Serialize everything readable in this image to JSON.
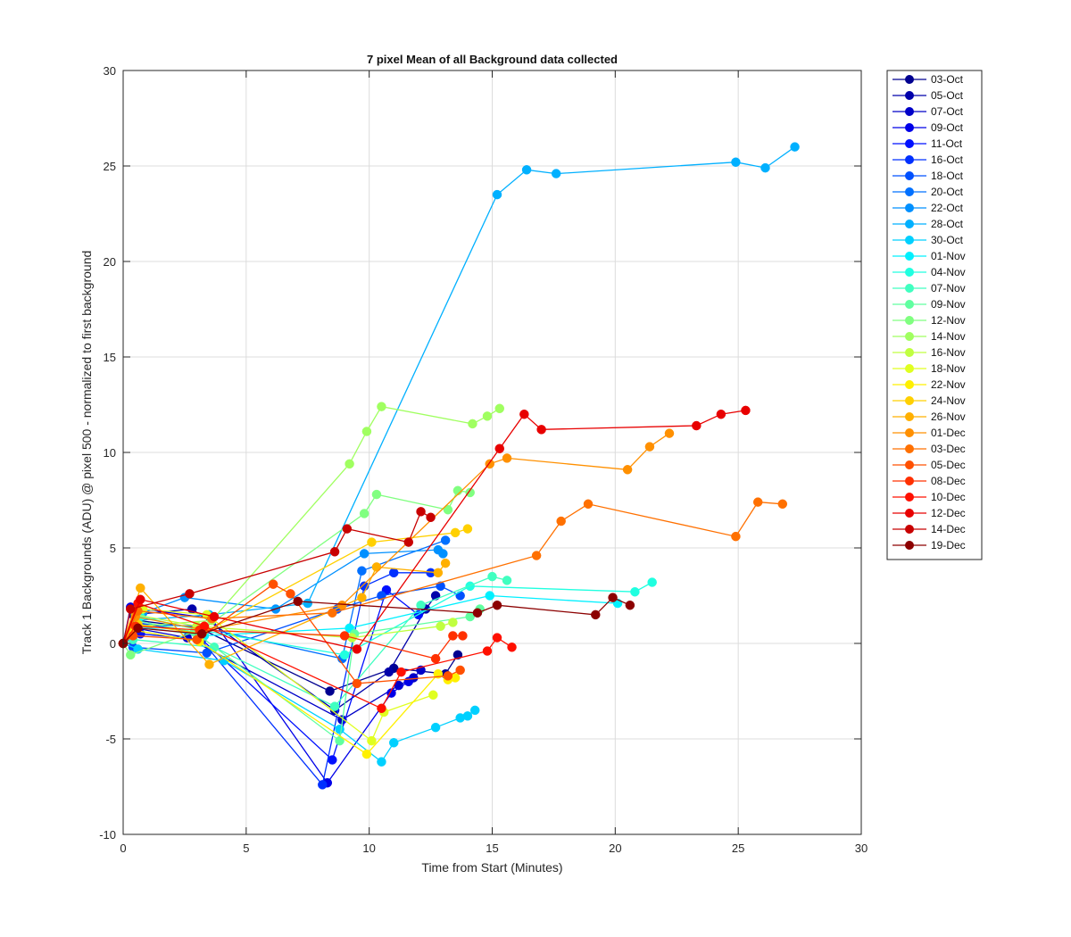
{
  "chart_data": {
    "type": "line",
    "title": "7 pixel Mean of all Background data collected",
    "xlabel": "Time from Start (Minutes)",
    "ylabel": "Track 1 Backgrounds (ADU) @ pixel 500 - normalized to first background",
    "xlim": [
      0,
      30
    ],
    "ylim": [
      -10,
      30
    ],
    "xticks": [
      0,
      5,
      10,
      15,
      20,
      25,
      30
    ],
    "yticks": [
      -10,
      -5,
      0,
      5,
      10,
      15,
      20,
      25,
      30
    ],
    "grid": true,
    "legend_position": "outside-top-right",
    "series": [
      {
        "name": "03-Oct",
        "color": "#000090",
        "x": [
          0,
          0.6,
          3.1,
          8.4,
          11.0,
          13.1,
          13.6
        ],
        "y": [
          0,
          1.2,
          0.8,
          -2.5,
          -1.3,
          -1.6,
          -0.6
        ]
      },
      {
        "name": "05-Oct",
        "color": "#0000AA",
        "x": [
          0,
          0.4,
          2.8,
          8.6,
          10.8,
          12.3,
          12.7
        ],
        "y": [
          0,
          1.5,
          1.8,
          -3.5,
          -1.5,
          1.8,
          2.5
        ]
      },
      {
        "name": "07-Oct",
        "color": "#0000C8",
        "x": [
          0,
          0.5,
          2.6,
          8.9,
          11.2,
          11.8,
          12.1
        ],
        "y": [
          0,
          0.8,
          0.3,
          -4.0,
          -2.2,
          -1.8,
          -1.4
        ]
      },
      {
        "name": "09-Oct",
        "color": "#0000E8",
        "x": [
          0,
          0.3,
          3.6,
          8.3,
          10.9,
          11.6
        ],
        "y": [
          0,
          1.9,
          1.3,
          -7.3,
          -2.6,
          -2.0
        ]
      },
      {
        "name": "11-Oct",
        "color": "#0010FF",
        "x": [
          0,
          0.7,
          3.2,
          8.5,
          10.7,
          12.0
        ],
        "y": [
          0,
          0.5,
          0.2,
          -6.1,
          2.8,
          1.5
        ]
      },
      {
        "name": "16-Oct",
        "color": "#0030FF",
        "x": [
          0,
          0.5,
          2.9,
          8.1,
          9.8,
          11.0,
          12.5
        ],
        "y": [
          0,
          1.1,
          0.6,
          -7.4,
          3.0,
          3.7,
          3.7
        ]
      },
      {
        "name": "18-Oct",
        "color": "#0050FF",
        "x": [
          0,
          0.4,
          3.4,
          8.7,
          10.5,
          12.9,
          13.7
        ],
        "y": [
          0,
          -0.2,
          -0.5,
          1.8,
          2.5,
          3.0,
          2.5
        ]
      },
      {
        "name": "20-Oct",
        "color": "#0070FF",
        "x": [
          0,
          0.6,
          3.0,
          8.9,
          9.7,
          13.1
        ],
        "y": [
          0,
          1.0,
          0.9,
          -0.8,
          3.8,
          5.4
        ]
      },
      {
        "name": "22-Oct",
        "color": "#0090FF",
        "x": [
          0,
          0.8,
          2.5,
          6.2,
          9.8,
          12.8,
          13.0
        ],
        "y": [
          0,
          1.6,
          2.4,
          1.8,
          4.7,
          4.9,
          4.7
        ]
      },
      {
        "name": "28-Oct",
        "color": "#00B0FF",
        "x": [
          0,
          0.5,
          3.5,
          7.5,
          15.2,
          16.4,
          17.6,
          24.9,
          26.1,
          27.3
        ],
        "y": [
          0,
          1.2,
          1.5,
          2.1,
          23.5,
          24.8,
          24.6,
          25.2,
          24.9,
          26.0
        ]
      },
      {
        "name": "30-Oct",
        "color": "#00D0FF",
        "x": [
          0,
          0.6,
          4.1,
          8.8,
          10.5,
          11.0,
          12.7,
          13.7,
          14.0,
          14.3
        ],
        "y": [
          0,
          -0.3,
          -0.9,
          -4.5,
          -6.2,
          -5.2,
          -4.4,
          -3.9,
          -3.8,
          -3.5
        ]
      },
      {
        "name": "01-Nov",
        "color": "#00F0FF",
        "x": [
          0,
          0.5,
          3.3,
          9.2,
          14.9,
          20.1
        ],
        "y": [
          0,
          0.9,
          0.4,
          0.8,
          2.5,
          2.1
        ]
      },
      {
        "name": "04-Nov",
        "color": "#20FFE0",
        "x": [
          0,
          0.7,
          3.1,
          9.0,
          14.1,
          20.8,
          21.5
        ],
        "y": [
          0,
          1.4,
          0.7,
          -0.6,
          3.0,
          2.7,
          3.2
        ]
      },
      {
        "name": "07-Nov",
        "color": "#40FFC0",
        "x": [
          0,
          0.4,
          3.7,
          8.6,
          12.1,
          15.0,
          15.6
        ],
        "y": [
          0,
          0.2,
          -0.2,
          -3.3,
          2.0,
          3.5,
          3.3
        ]
      },
      {
        "name": "09-Nov",
        "color": "#60FFA0",
        "x": [
          0,
          0.5,
          2.9,
          8.8,
          9.4,
          14.1,
          14.5
        ],
        "y": [
          0,
          1.2,
          0.6,
          -5.1,
          0.5,
          1.4,
          1.8
        ]
      },
      {
        "name": "12-Nov",
        "color": "#80FF80",
        "x": [
          0,
          0.3,
          3.3,
          9.8,
          10.3,
          13.2,
          13.6,
          14.1
        ],
        "y": [
          0,
          -0.6,
          0.8,
          6.8,
          7.8,
          7.0,
          8.0,
          7.9
        ]
      },
      {
        "name": "14-Nov",
        "color": "#A0FF60",
        "x": [
          0,
          0.6,
          3.6,
          9.2,
          9.9,
          10.5,
          14.2,
          14.8,
          15.3
        ],
        "y": [
          0,
          0.9,
          1.2,
          9.4,
          11.1,
          12.4,
          11.5,
          11.9,
          12.3
        ]
      },
      {
        "name": "16-Nov",
        "color": "#C0FF40",
        "x": [
          0,
          0.5,
          3.0,
          9.3,
          12.9,
          13.4
        ],
        "y": [
          0,
          1.5,
          0.9,
          0.3,
          0.9,
          1.1
        ]
      },
      {
        "name": "18-Nov",
        "color": "#E0FF20",
        "x": [
          0,
          0.8,
          3.4,
          10.1,
          10.6,
          12.6
        ],
        "y": [
          0,
          1.8,
          1.5,
          -5.1,
          -3.6,
          -2.7
        ]
      },
      {
        "name": "22-Nov",
        "color": "#FFF000",
        "x": [
          0,
          0.4,
          3.1,
          9.9,
          12.8,
          13.2,
          13.5
        ],
        "y": [
          0,
          0.7,
          0.1,
          -5.8,
          -1.6,
          -1.9,
          -1.8
        ]
      },
      {
        "name": "24-Nov",
        "color": "#FFD000",
        "x": [
          0,
          0.6,
          3.2,
          10.1,
          13.5,
          14.0
        ],
        "y": [
          0,
          1.0,
          0.5,
          5.3,
          5.8,
          6.0
        ]
      },
      {
        "name": "26-Nov",
        "color": "#FFB000",
        "x": [
          0,
          0.7,
          3.5,
          9.7,
          10.3,
          12.8,
          13.1
        ],
        "y": [
          0,
          2.9,
          -1.1,
          2.4,
          4.0,
          3.7,
          4.2
        ]
      },
      {
        "name": "01-Dec",
        "color": "#FF9000",
        "x": [
          0,
          0.5,
          3.3,
          8.9,
          14.9,
          15.6,
          20.5,
          21.4,
          22.2
        ],
        "y": [
          0,
          1.4,
          0.7,
          2.0,
          9.4,
          9.7,
          9.1,
          10.3,
          11.0
        ]
      },
      {
        "name": "03-Dec",
        "color": "#FF7000",
        "x": [
          0,
          0.6,
          3.6,
          8.5,
          16.8,
          17.8,
          18.9,
          24.9,
          25.8,
          26.8
        ],
        "y": [
          0,
          1.7,
          1.3,
          1.6,
          4.6,
          6.4,
          7.3,
          5.6,
          7.4,
          7.3
        ]
      },
      {
        "name": "05-Dec",
        "color": "#FF5000",
        "x": [
          0,
          0.4,
          3.0,
          6.1,
          6.8,
          9.5,
          13.2,
          13.7
        ],
        "y": [
          0,
          0.4,
          0.2,
          3.1,
          2.6,
          -2.1,
          -1.7,
          -1.4
        ]
      },
      {
        "name": "08-Dec",
        "color": "#FF3000",
        "x": [
          0,
          0.5,
          3.1,
          9.0,
          12.7,
          13.4,
          13.8
        ],
        "y": [
          0,
          0.9,
          0.7,
          0.4,
          -0.8,
          0.4,
          0.4
        ]
      },
      {
        "name": "10-Dec",
        "color": "#FF1000",
        "x": [
          0,
          0.6,
          3.3,
          10.5,
          11.3,
          14.8,
          15.2,
          15.8
        ],
        "y": [
          0,
          2.1,
          0.9,
          -3.4,
          -1.5,
          -0.4,
          0.3,
          -0.2
        ]
      },
      {
        "name": "12-Dec",
        "color": "#E80000",
        "x": [
          0,
          0.7,
          3.7,
          9.5,
          15.3,
          16.3,
          17.0,
          23.3,
          24.3,
          25.3
        ],
        "y": [
          0,
          2.3,
          1.4,
          -0.3,
          10.2,
          12.0,
          11.2,
          11.4,
          12.0,
          12.2
        ]
      },
      {
        "name": "14-Dec",
        "color": "#C80000",
        "x": [
          0,
          0.3,
          2.7,
          8.6,
          9.1,
          11.6,
          12.1,
          12.5
        ],
        "y": [
          0,
          1.8,
          2.6,
          4.8,
          6.0,
          5.3,
          6.9,
          6.6
        ]
      },
      {
        "name": "19-Dec",
        "color": "#8C0000",
        "x": [
          0,
          0.6,
          3.2,
          7.1,
          14.4,
          15.2,
          19.2,
          19.9,
          20.6
        ],
        "y": [
          0,
          0.8,
          0.5,
          2.2,
          1.6,
          2.0,
          1.5,
          2.4,
          2.0
        ]
      }
    ]
  }
}
